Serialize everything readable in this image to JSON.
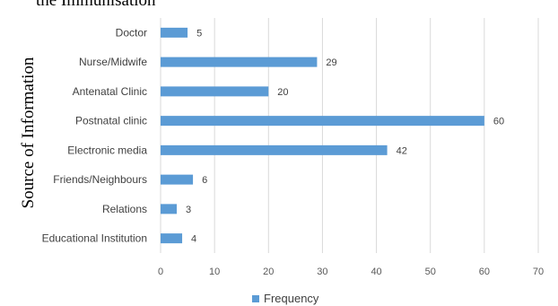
{
  "chart_data": {
    "type": "bar",
    "orientation": "horizontal",
    "title_fragment": "the Immunisation",
    "ylabel": "Source of Information",
    "xlabel": "",
    "categories": [
      "Doctor",
      "Nurse/Midwife",
      "Antenatal Clinic",
      "Postnatal clinic",
      "Electronic media",
      "Friends/Neighbours",
      "Relations",
      "Educational Institution"
    ],
    "series": [
      {
        "name": "Frequency",
        "values": [
          5,
          29,
          20,
          60,
          42,
          6,
          3,
          4
        ],
        "color": "#5B9BD5"
      }
    ],
    "xlim": [
      0,
      70
    ],
    "xticks": [
      0,
      10,
      20,
      30,
      40,
      50,
      60,
      70
    ],
    "grid": "vertical",
    "legend": "bottom-center"
  }
}
